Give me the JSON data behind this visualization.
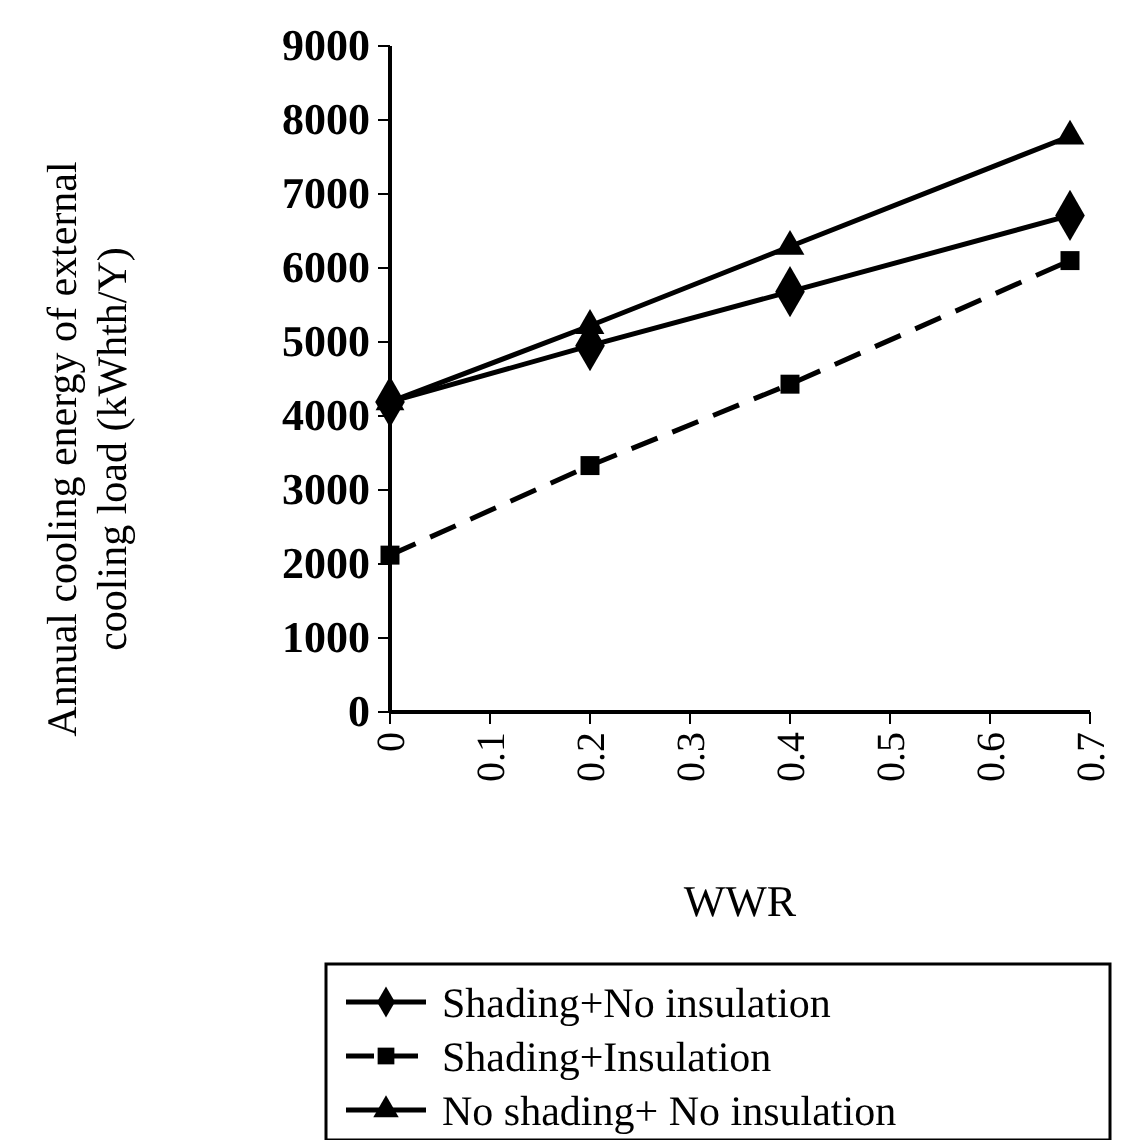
{
  "chart_data": {
    "type": "line",
    "xlabel": "WWR",
    "ylabel": "Annual cooling energy of external cooling load (kWhth/Y)",
    "xlim": [
      0,
      0.7
    ],
    "xticks": [
      0,
      0.1,
      0.2,
      0.3,
      0.4,
      0.5,
      0.6,
      0.7
    ],
    "ylim": [
      0,
      9000
    ],
    "yticks": [
      0,
      1000,
      2000,
      3000,
      4000,
      5000,
      6000,
      7000,
      8000,
      9000
    ],
    "x": [
      0,
      0.2,
      0.4,
      0.68
    ],
    "legend": "bottom",
    "grid": false,
    "series": [
      {
        "name": "Shading+No insulation",
        "color": "#000000",
        "marker": "diamond",
        "line_style": "solid",
        "values": [
          4190,
          4950,
          5680,
          6710
        ]
      },
      {
        "name": "Shading+Insulation",
        "color": "#000000",
        "marker": "square",
        "line_style": "dashed",
        "values": [
          2120,
          3330,
          4430,
          6100
        ]
      },
      {
        "name": "No shading+ No insulation",
        "color": "#000000",
        "marker": "triangle",
        "line_style": "solid",
        "values": [
          4190,
          5220,
          6290,
          7780
        ]
      }
    ]
  }
}
